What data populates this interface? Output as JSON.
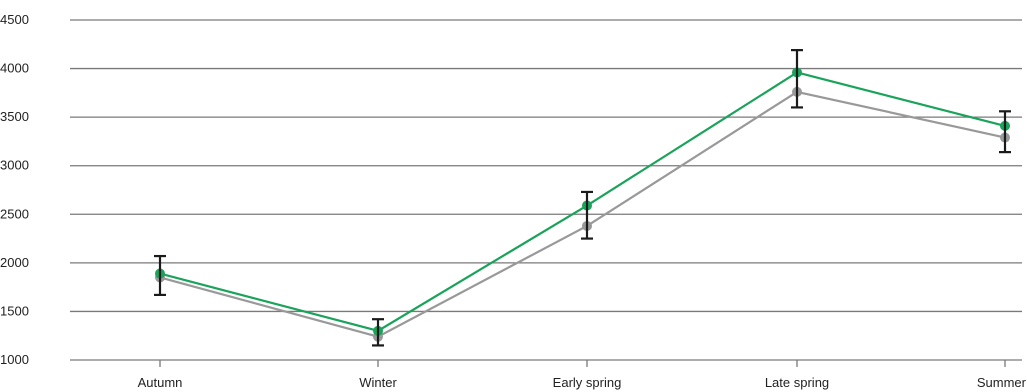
{
  "chart_data": {
    "type": "line",
    "title": "",
    "xlabel": "",
    "ylabel": "",
    "categories": [
      "Autumn",
      "Winter",
      "Early spring",
      "Late spring",
      "Summer"
    ],
    "ylim": [
      1000,
      4500
    ],
    "yticks": [
      "1000",
      "1500",
      "2000",
      "2500",
      "3000",
      "3500",
      "4000",
      "4500"
    ],
    "grid": true,
    "series": [
      {
        "color": "#1aa35a",
        "values": [
          1890,
          1300,
          2590,
          3960,
          3410
        ]
      },
      {
        "color": "#999999",
        "values": [
          1850,
          1240,
          2380,
          3760,
          3290
        ]
      }
    ],
    "error_bars": [
      {
        "low": 1670,
        "high": 2070
      },
      {
        "low": 1150,
        "high": 1420
      },
      {
        "low": 2250,
        "high": 2730
      },
      {
        "low": 3600,
        "high": 4190
      },
      {
        "low": 3140,
        "high": 3560
      }
    ],
    "colors": {
      "grid": "#7a7a7a",
      "error_bar": "#1a1a1a",
      "text": "#222222"
    }
  }
}
